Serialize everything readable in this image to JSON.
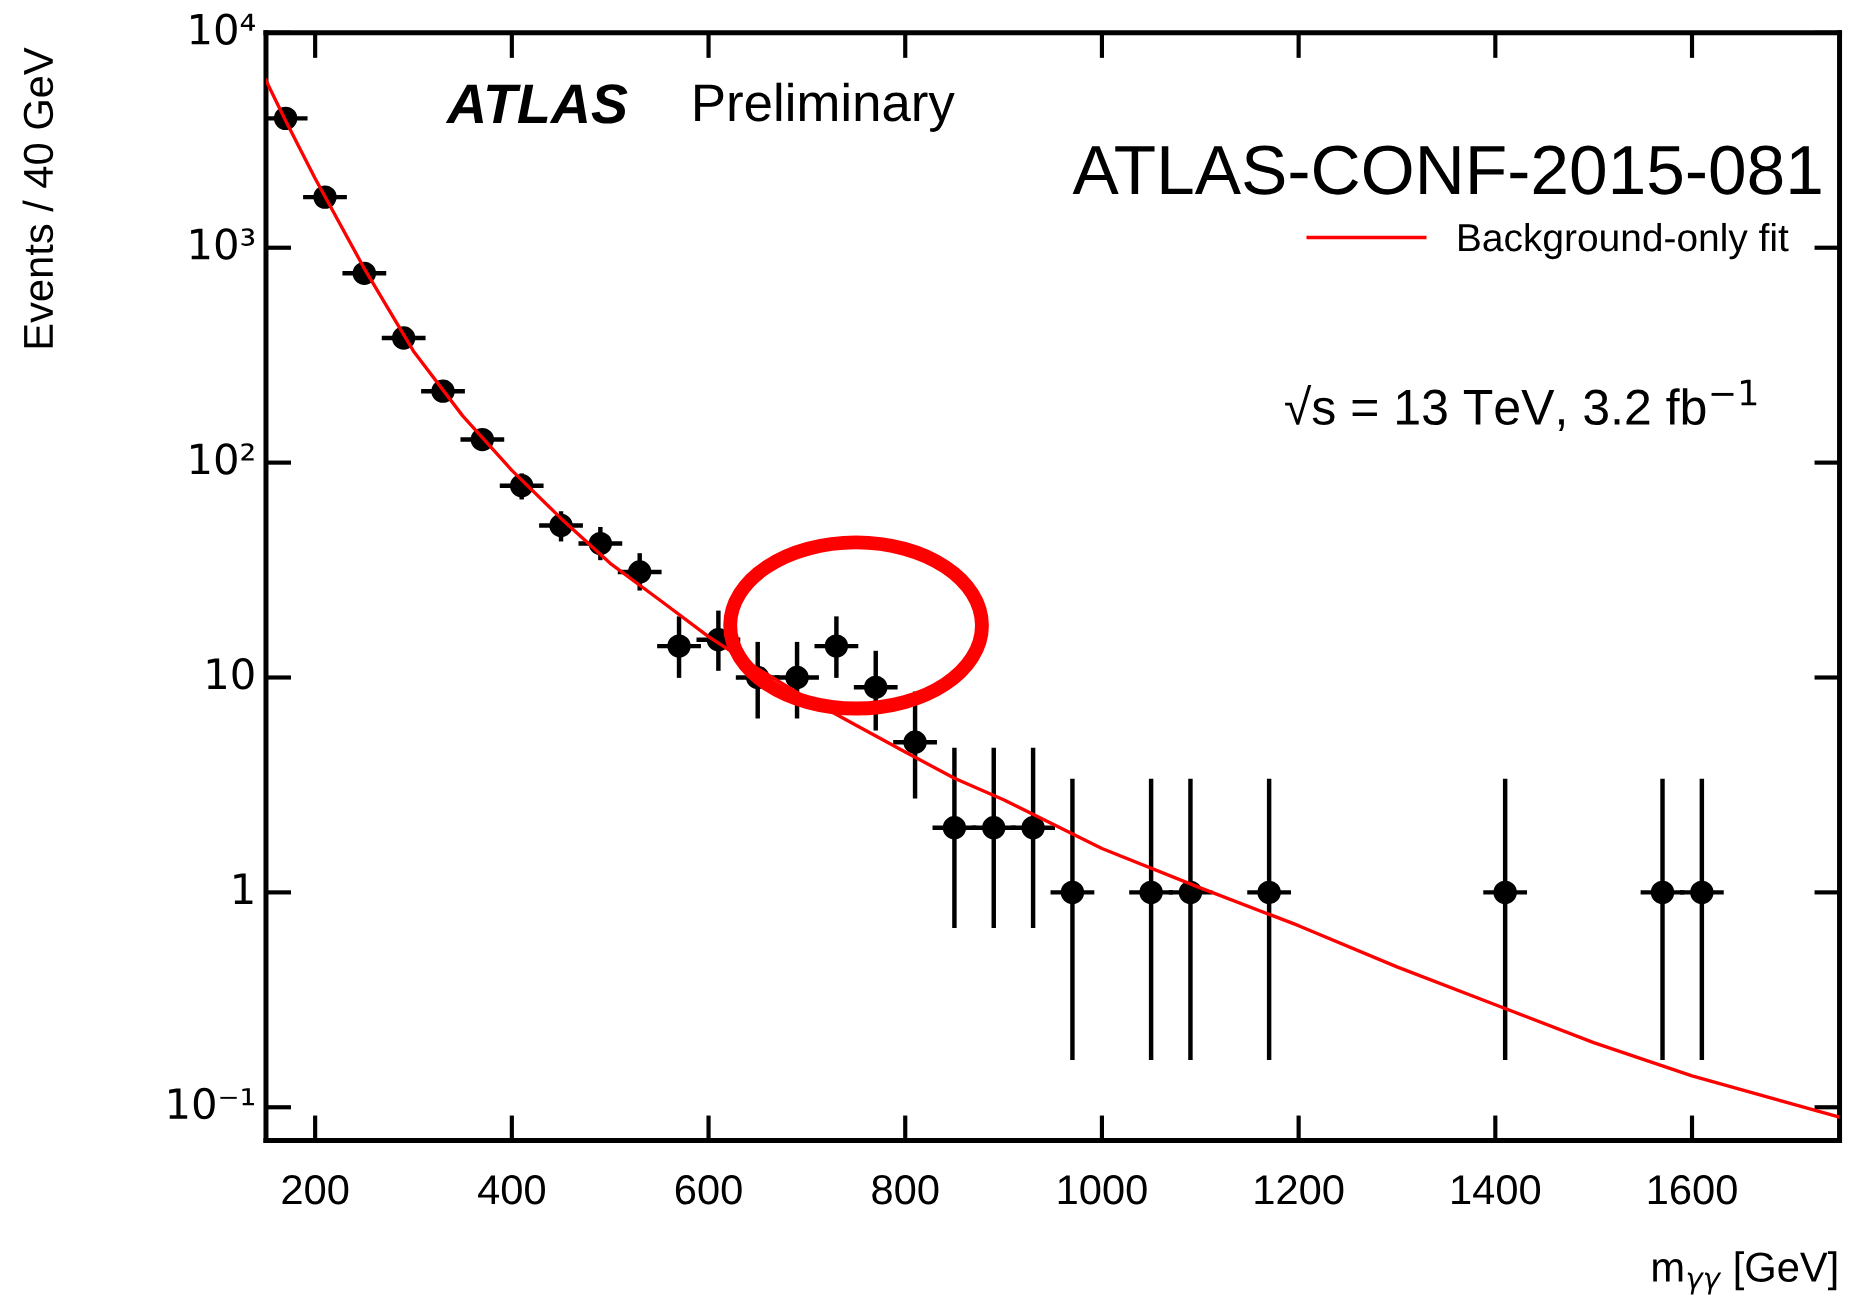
{
  "chart_data": {
    "type": "scatter",
    "xlabel": "m$_{γγ}$ [GeV]",
    "ylabel": "Events / 40 GeV",
    "annotations": [
      "ATLAS",
      "Preliminary",
      "ATLAS-CONF-2015-081",
      "√s = 13 TeV, 3.2 fb$^{−1}$"
    ],
    "xlim": [
      150,
      1750
    ],
    "xticks": [
      200,
      400,
      600,
      800,
      1000,
      1200,
      1400,
      1600
    ],
    "ylim": [
      0.07,
      10000
    ],
    "yticks": [
      {
        "value": 0.1,
        "label": "10⁻¹"
      },
      1,
      10,
      {
        "value": 100,
        "label": "10²"
      },
      {
        "value": 1000,
        "label": "10³"
      },
      {
        "value": 10000,
        "label": "10⁴"
      }
    ],
    "log": "y",
    "grid": false,
    "legend": "top right",
    "series": [
      {
        "marker": "circle",
        "color": "#000000",
        "x": [
          170,
          210,
          250,
          290,
          330,
          370,
          410,
          450,
          490,
          530,
          570,
          610,
          650,
          690,
          730,
          770,
          810,
          850,
          890,
          930,
          970,
          1050,
          1090,
          1170,
          1410,
          1570,
          1610
        ],
        "values": [
          4000,
          1720,
          760,
          380,
          215,
          128,
          78,
          51,
          42,
          31,
          14,
          15,
          10,
          10,
          14,
          9,
          5,
          2,
          2,
          2,
          1,
          1,
          1,
          1,
          1,
          1,
          1
        ],
        "errors": [
          null,
          null,
          null,
          null,
          null,
          null,
          [
            69,
            87
          ],
          [
            44,
            58
          ],
          [
            36,
            49
          ],
          [
            26,
            37
          ],
          [
            10.2,
            18.8
          ],
          [
            11,
            20
          ],
          [
            6.6,
            14.3
          ],
          [
            6.6,
            14.3
          ],
          [
            10.2,
            18.8
          ],
          [
            5.8,
            13
          ],
          [
            2.8,
            8.4
          ],
          [
            0.7,
            4.6
          ],
          [
            0.7,
            4.6
          ],
          [
            0.7,
            4.6
          ],
          [
            0.17,
            3.3
          ],
          [
            0.17,
            3.3
          ],
          [
            0.17,
            3.3
          ],
          [
            0.17,
            3.3
          ],
          [
            0.17,
            3.3
          ],
          [
            0.17,
            3.3
          ],
          [
            0.17,
            3.3
          ]
        ],
        "xerrors": [
          20,
          20,
          20,
          20,
          20,
          20,
          20,
          20,
          20,
          20,
          20,
          20,
          20,
          20,
          20,
          20,
          20,
          20,
          20,
          20,
          20,
          20,
          20,
          20,
          20,
          20,
          20
        ]
      },
      {
        "type": "line",
        "name": "Background-only fit",
        "color": "#ff0000",
        "x": [
          150,
          170,
          200,
          250,
          300,
          350,
          400,
          450,
          500,
          550,
          600,
          650,
          700,
          750,
          800,
          850,
          900,
          1000,
          1100,
          1200,
          1300,
          1400,
          1500,
          1600,
          1750
        ],
        "values": [
          6000,
          3900,
          2100,
          800,
          330,
          165,
          92,
          55,
          34,
          23,
          15.5,
          11,
          8,
          6,
          4.5,
          3.4,
          2.7,
          1.6,
          1.05,
          0.7,
          0.45,
          0.3,
          0.2,
          0.14,
          0.09
        ]
      }
    ]
  }
}
